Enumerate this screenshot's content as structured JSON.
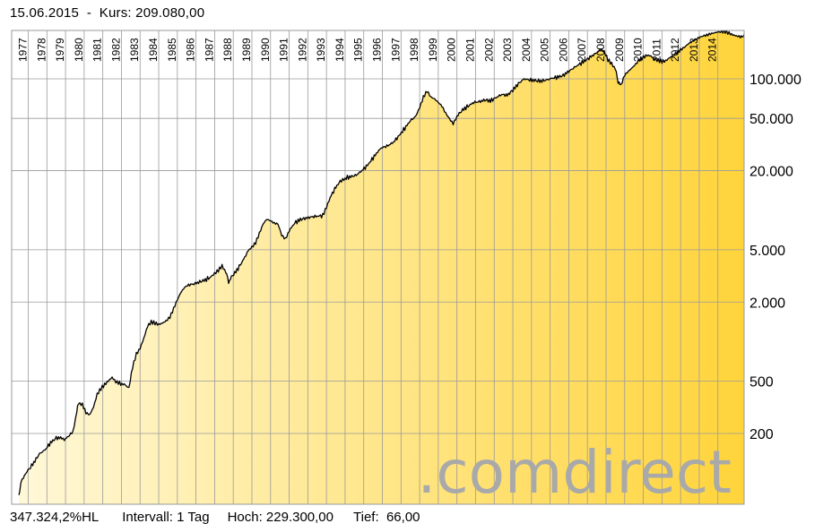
{
  "header": {
    "date": "15.06.2015",
    "separator": "-",
    "price_label": "Kurs:",
    "price_value": "209.080,00"
  },
  "footer": {
    "performance": "347.324,2%HL",
    "interval_label": "Intervall:",
    "interval_value": "1 Tag",
    "high_label": "Hoch:",
    "high_value": "229.300,00",
    "low_label": "Tief:",
    "low_value": "66,00"
  },
  "watermark": ".comdirect",
  "colors": {
    "fill_start": "#fff8d8",
    "fill_end": "#ffd43a",
    "line": "#000000",
    "grid": "#9a9a9a",
    "watermark": "#a9a9a9"
  },
  "chart_data": {
    "type": "area",
    "yscale": "log",
    "ylim": [
      66,
      229300
    ],
    "xlim": [
      1976.5,
      2015.46
    ],
    "yticks": [
      {
        "value": 200,
        "label": "200"
      },
      {
        "value": 500,
        "label": "500"
      },
      {
        "value": 2000,
        "label": "2.000"
      },
      {
        "value": 5000,
        "label": "5.000"
      },
      {
        "value": 20000,
        "label": "20.000"
      },
      {
        "value": 50000,
        "label": "50.000"
      },
      {
        "value": 100000,
        "label": "100.000"
      }
    ],
    "xticks": [
      {
        "value": 1977,
        "label": "1977"
      },
      {
        "value": 1978,
        "label": "1978"
      },
      {
        "value": 1979,
        "label": "1979"
      },
      {
        "value": 1980,
        "label": "1980"
      },
      {
        "value": 1981,
        "label": "1981"
      },
      {
        "value": 1982,
        "label": "1982"
      },
      {
        "value": 1983,
        "label": "1983"
      },
      {
        "value": 1984,
        "label": "1984"
      },
      {
        "value": 1985,
        "label": "1985"
      },
      {
        "value": 1986,
        "label": "1986"
      },
      {
        "value": 1987,
        "label": "1987"
      },
      {
        "value": 1988,
        "label": "1988"
      },
      {
        "value": 1989,
        "label": "1989"
      },
      {
        "value": 1990,
        "label": "1990"
      },
      {
        "value": 1991,
        "label": "1991"
      },
      {
        "value": 1992,
        "label": "1992"
      },
      {
        "value": 1993,
        "label": "1993"
      },
      {
        "value": 1994,
        "label": "1994"
      },
      {
        "value": 1995,
        "label": "1995"
      },
      {
        "value": 1996,
        "label": "1996"
      },
      {
        "value": 1997,
        "label": "1997"
      },
      {
        "value": 1998,
        "label": "1998"
      },
      {
        "value": 1999,
        "label": "1999"
      },
      {
        "value": 2000,
        "label": "2000"
      },
      {
        "value": 2001,
        "label": "2001"
      },
      {
        "value": 2002,
        "label": "2002"
      },
      {
        "value": 2003,
        "label": "2003"
      },
      {
        "value": 2004,
        "label": "2004"
      },
      {
        "value": 2005,
        "label": "2005"
      },
      {
        "value": 2006,
        "label": "2006"
      },
      {
        "value": 2007,
        "label": "2007"
      },
      {
        "value": 2008,
        "label": "2008"
      },
      {
        "value": 2009,
        "label": "2009"
      },
      {
        "value": 2010,
        "label": "2010"
      },
      {
        "value": 2011,
        "label": "2011"
      },
      {
        "value": 2012,
        "label": "2012"
      },
      {
        "value": 2013,
        "label": "2013"
      },
      {
        "value": 2014,
        "label": "2014"
      }
    ],
    "series": [
      {
        "points": [
          [
            1976.5,
            66
          ],
          [
            1976.6,
            85
          ],
          [
            1976.8,
            95
          ],
          [
            1977.0,
            105
          ],
          [
            1977.3,
            120
          ],
          [
            1977.6,
            140
          ],
          [
            1977.9,
            150
          ],
          [
            1978.2,
            170
          ],
          [
            1978.5,
            185
          ],
          [
            1978.8,
            185
          ],
          [
            1979.0,
            180
          ],
          [
            1979.15,
            190
          ],
          [
            1979.4,
            205
          ],
          [
            1979.6,
            290
          ],
          [
            1979.7,
            340
          ],
          [
            1979.9,
            335
          ],
          [
            1980.1,
            290
          ],
          [
            1980.3,
            280
          ],
          [
            1980.5,
            320
          ],
          [
            1980.7,
            400
          ],
          [
            1980.9,
            440
          ],
          [
            1981.1,
            470
          ],
          [
            1981.3,
            500
          ],
          [
            1981.5,
            530
          ],
          [
            1981.7,
            490
          ],
          [
            1981.9,
            480
          ],
          [
            1982.2,
            470
          ],
          [
            1982.4,
            445
          ],
          [
            1982.6,
            640
          ],
          [
            1982.8,
            800
          ],
          [
            1983.0,
            880
          ],
          [
            1983.2,
            1050
          ],
          [
            1983.4,
            1300
          ],
          [
            1983.6,
            1400
          ],
          [
            1983.8,
            1380
          ],
          [
            1984.0,
            1350
          ],
          [
            1984.2,
            1390
          ],
          [
            1984.4,
            1450
          ],
          [
            1984.6,
            1550
          ],
          [
            1984.8,
            1800
          ],
          [
            1985.0,
            2100
          ],
          [
            1985.2,
            2400
          ],
          [
            1985.4,
            2600
          ],
          [
            1985.6,
            2700
          ],
          [
            1985.9,
            2750
          ],
          [
            1986.2,
            2850
          ],
          [
            1986.5,
            2950
          ],
          [
            1986.8,
            3100
          ],
          [
            1987.0,
            3300
          ],
          [
            1987.2,
            3500
          ],
          [
            1987.4,
            3800
          ],
          [
            1987.6,
            3400
          ],
          [
            1987.75,
            2850
          ],
          [
            1987.9,
            3100
          ],
          [
            1988.2,
            3500
          ],
          [
            1988.5,
            4100
          ],
          [
            1988.8,
            4900
          ],
          [
            1989.0,
            5200
          ],
          [
            1989.2,
            5600
          ],
          [
            1989.4,
            6600
          ],
          [
            1989.6,
            7800
          ],
          [
            1989.8,
            8500
          ],
          [
            1990.0,
            8300
          ],
          [
            1990.2,
            8000
          ],
          [
            1990.4,
            7900
          ],
          [
            1990.6,
            6500
          ],
          [
            1990.8,
            6100
          ],
          [
            1991.0,
            7000
          ],
          [
            1991.3,
            8000
          ],
          [
            1991.6,
            8500
          ],
          [
            1991.9,
            8700
          ],
          [
            1992.2,
            8900
          ],
          [
            1992.5,
            9000
          ],
          [
            1992.8,
            9100
          ],
          [
            1993.0,
            10500
          ],
          [
            1993.2,
            12500
          ],
          [
            1993.5,
            15000
          ],
          [
            1993.8,
            17000
          ],
          [
            1994.0,
            17500
          ],
          [
            1994.3,
            18000
          ],
          [
            1994.6,
            18500
          ],
          [
            1994.9,
            20000
          ],
          [
            1995.2,
            22000
          ],
          [
            1995.5,
            25000
          ],
          [
            1995.8,
            28500
          ],
          [
            1996.0,
            30000
          ],
          [
            1996.3,
            31000
          ],
          [
            1996.6,
            33000
          ],
          [
            1996.9,
            37000
          ],
          [
            1997.2,
            42000
          ],
          [
            1997.5,
            48000
          ],
          [
            1997.8,
            52000
          ],
          [
            1998.0,
            60000
          ],
          [
            1998.2,
            72000
          ],
          [
            1998.4,
            80000
          ],
          [
            1998.6,
            72000
          ],
          [
            1998.8,
            70000
          ],
          [
            1999.0,
            66000
          ],
          [
            1999.2,
            62000
          ],
          [
            1999.4,
            55000
          ],
          [
            1999.6,
            50000
          ],
          [
            1999.8,
            46000
          ],
          [
            2000.0,
            52000
          ],
          [
            2000.3,
            58000
          ],
          [
            2000.6,
            62000
          ],
          [
            2000.9,
            66000
          ],
          [
            2001.2,
            67000
          ],
          [
            2001.5,
            69000
          ],
          [
            2001.8,
            68000
          ],
          [
            2002.1,
            72000
          ],
          [
            2002.4,
            76000
          ],
          [
            2002.7,
            75000
          ],
          [
            2003.0,
            82000
          ],
          [
            2003.3,
            92000
          ],
          [
            2003.6,
            100000
          ],
          [
            2003.9,
            98000
          ],
          [
            2004.2,
            97000
          ],
          [
            2004.5,
            96000
          ],
          [
            2004.8,
            98000
          ],
          [
            2005.1,
            101000
          ],
          [
            2005.4,
            103000
          ],
          [
            2005.7,
            106000
          ],
          [
            2006.0,
            114000
          ],
          [
            2006.3,
            122000
          ],
          [
            2006.6,
            130000
          ],
          [
            2006.9,
            138000
          ],
          [
            2007.2,
            148000
          ],
          [
            2007.5,
            158000
          ],
          [
            2007.7,
            170000
          ],
          [
            2007.9,
            162000
          ],
          [
            2008.1,
            140000
          ],
          [
            2008.3,
            130000
          ],
          [
            2008.5,
            118000
          ],
          [
            2008.65,
            95000
          ],
          [
            2008.8,
            90000
          ],
          [
            2009.0,
            108000
          ],
          [
            2009.2,
            115000
          ],
          [
            2009.4,
            122000
          ],
          [
            2009.6,
            130000
          ],
          [
            2009.8,
            140000
          ],
          [
            2010.0,
            145000
          ],
          [
            2010.2,
            150000
          ],
          [
            2010.4,
            148000
          ],
          [
            2010.6,
            140000
          ],
          [
            2010.8,
            137000
          ],
          [
            2011.0,
            135000
          ],
          [
            2011.2,
            137000
          ],
          [
            2011.4,
            145000
          ],
          [
            2011.6,
            152000
          ],
          [
            2011.8,
            160000
          ],
          [
            2012.0,
            168000
          ],
          [
            2012.2,
            175000
          ],
          [
            2012.4,
            185000
          ],
          [
            2012.6,
            192000
          ],
          [
            2012.8,
            198000
          ],
          [
            2013.0,
            205000
          ],
          [
            2013.2,
            210000
          ],
          [
            2013.4,
            213000
          ],
          [
            2013.6,
            218000
          ],
          [
            2013.8,
            222000
          ],
          [
            2014.0,
            226000
          ],
          [
            2014.2,
            228000
          ],
          [
            2014.4,
            229300
          ],
          [
            2014.6,
            224000
          ],
          [
            2014.8,
            218000
          ],
          [
            2015.0,
            214000
          ],
          [
            2015.2,
            211000
          ],
          [
            2015.46,
            209080
          ]
        ]
      }
    ]
  }
}
